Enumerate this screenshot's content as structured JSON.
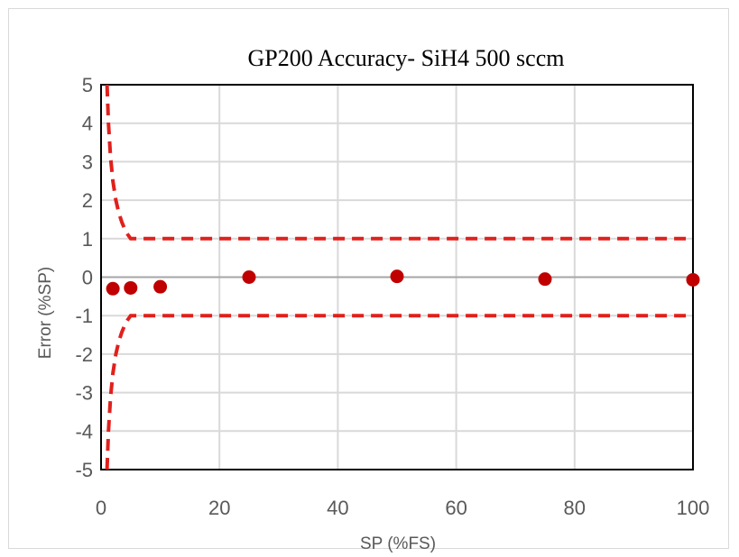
{
  "chart_data": {
    "type": "scatter",
    "title": "GP200 Accuracy- SiH4 500 sccm",
    "xlabel": "SP (%FS)",
    "ylabel": "Error (%SP)",
    "xlim": [
      0,
      100
    ],
    "ylim": [
      -5,
      5
    ],
    "x_ticks": [
      0,
      20,
      40,
      60,
      80,
      100
    ],
    "y_ticks": [
      5,
      4,
      3,
      2,
      1,
      0,
      -1,
      -2,
      -3,
      -4,
      -5
    ],
    "grid": true,
    "legend": "none",
    "series": [
      {
        "kind": "points",
        "color": "#c00000",
        "x": [
          2,
          5,
          10,
          25,
          50,
          75,
          100
        ],
        "y": [
          -0.3,
          -0.28,
          -0.25,
          0,
          0.02,
          -0.05,
          -0.07
        ]
      },
      {
        "kind": "dashed-line",
        "color": "#e0201c",
        "x": [
          1,
          1.25,
          1.6,
          2,
          2.5,
          3,
          3.5,
          4,
          4.5,
          5,
          100
        ],
        "y": [
          5,
          4,
          3.12,
          2.5,
          2,
          1.67,
          1.43,
          1.25,
          1.11,
          1,
          1
        ]
      },
      {
        "kind": "dashed-line",
        "color": "#e0201c",
        "x": [
          1,
          1.25,
          1.6,
          2,
          2.5,
          3,
          3.5,
          4,
          4.5,
          5,
          100
        ],
        "y": [
          -5,
          -4,
          -3.12,
          -2.5,
          -2,
          -1.67,
          -1.43,
          -1.25,
          -1.11,
          -1,
          -1
        ]
      }
    ]
  }
}
